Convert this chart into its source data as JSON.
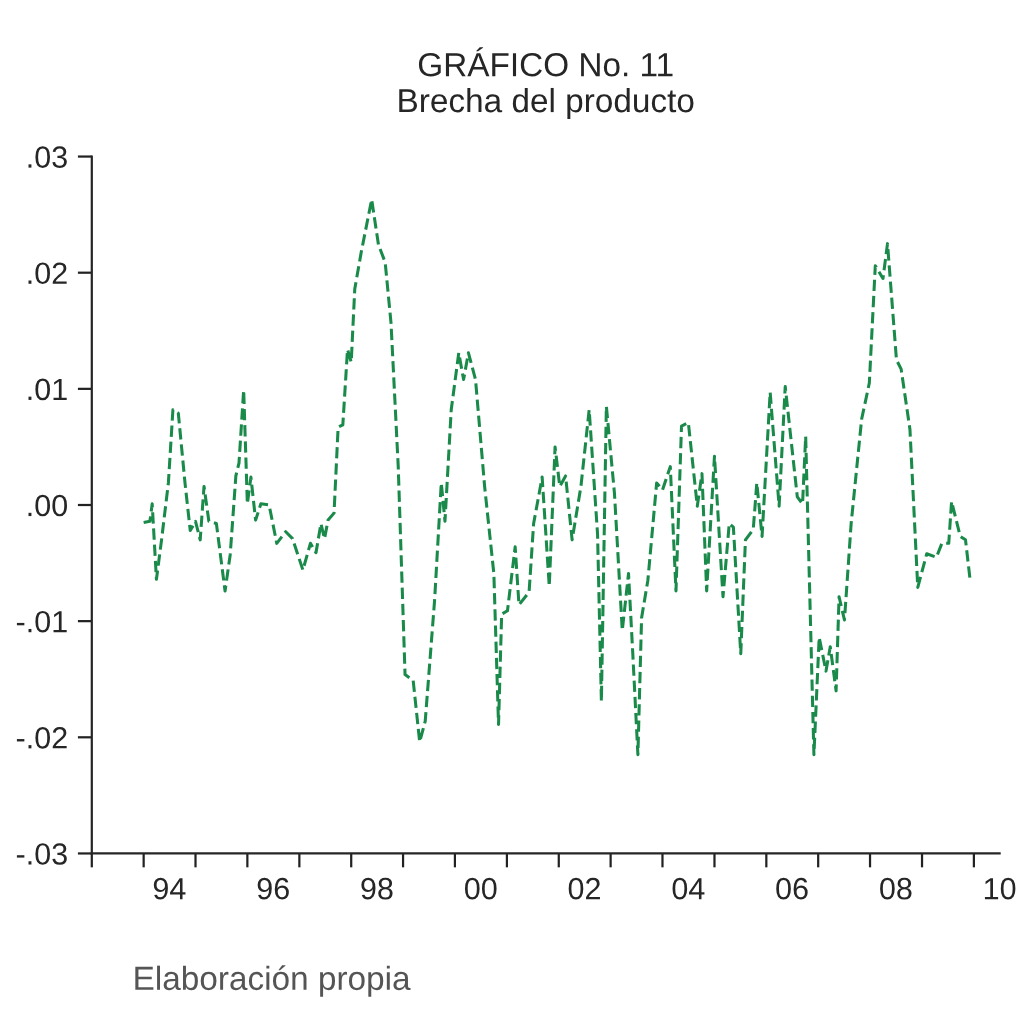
{
  "chart_data": {
    "type": "line",
    "title": "GRÁFICO No. 11\nBrecha del producto",
    "annotations": [
      "Elaboración propia"
    ],
    "x": [
      "1994-01-01",
      "1994-02-14",
      "1994-03-02",
      "1994-04-01",
      "1994-05-07",
      "1994-06-24",
      "1994-07-26",
      "1994-09-02",
      "1994-10-19",
      "1994-11-25",
      "1995-01-01",
      "1995-02-03",
      "1995-03-02",
      "1995-04-05",
      "1995-05-28",
      "1995-07-28",
      "1995-09-02",
      "1995-10-12",
      "1995-11-03",
      "1995-12-06",
      "1996-01-01",
      "1996-01-26",
      "1996-02-28",
      "1996-04-05",
      "1996-06-02",
      "1996-07-26",
      "1996-09-27",
      "1996-11-14",
      "1997-01-26",
      "1997-03-20",
      "1997-04-28",
      "1997-06-02",
      "1997-06-27",
      "1997-07-22",
      "1997-09-02",
      "1997-10-01",
      "1997-11-03",
      "1997-12-06",
      "1998-01-01",
      "1998-01-26",
      "1998-03-13",
      "1998-05-25",
      "1998-07-12",
      "1998-08-28",
      "1998-10-08",
      "1998-11-28",
      "1999-01-15",
      "1999-03-13",
      "1999-04-28",
      "1999-06-06",
      "1999-08-11",
      "1999-09-27",
      "1999-10-23",
      "1999-12-06",
      "2000-01-28",
      "2000-03-02",
      "2000-04-05",
      "2000-05-25",
      "2000-07-28",
      "2000-10-01",
      "2000-11-03",
      "2000-11-25",
      "2001-01-05",
      "2001-02-28",
      "2001-03-27",
      "2001-06-06",
      "2001-07-08",
      "2001-09-06",
      "2001-10-26",
      "2001-12-06",
      "2002-01-08",
      "2002-02-18",
      "2002-04-05",
      "2002-06-06",
      "2002-08-03",
      "2002-10-01",
      "2002-10-28",
      "2002-12-02",
      "2003-01-28",
      "2003-03-24",
      "2003-05-07",
      "2003-06-06",
      "2003-07-12",
      "2003-08-07",
      "2003-09-20",
      "2003-11-21",
      "2004-01-01",
      "2004-02-25",
      "2004-04-05",
      "2004-05-14",
      "2004-07-01",
      "2004-09-02",
      "2004-10-05",
      "2004-11-07",
      "2005-01-01",
      "2005-03-02",
      "2005-04-15",
      "2005-05-14",
      "2005-07-05",
      "2005-08-07",
      "2005-10-01",
      "2005-10-26",
      "2005-12-02",
      "2006-01-28",
      "2006-04-01",
      "2006-05-14",
      "2006-08-07",
      "2006-09-13",
      "2006-10-05",
      "2006-12-02",
      "2007-01-08",
      "2007-02-25",
      "2007-03-27",
      "2007-05-07",
      "2007-05-28",
      "2007-07-05",
      "2007-08-21",
      "2007-11-03",
      "2007-12-27",
      "2008-02-07",
      "2008-04-01",
      "2008-05-03",
      "2008-07-05",
      "2008-08-07",
      "2008-10-08",
      "2008-12-02",
      "2009-02-03",
      "2009-04-12",
      "2009-05-21",
      "2009-07-08",
      "2009-07-28",
      "2009-09-27",
      "2009-11-03",
      "2009-12-06"
    ],
    "series": [
      {
        "color": "#1a8a4a",
        "values": [
          -0.0015,
          -0.0014,
          0.0001,
          -0.0064,
          -0.003,
          0.0019,
          0.0082,
          0.0079,
          0.0019,
          -0.0022,
          -0.0014,
          -0.003,
          0.0016,
          -0.0014,
          -0.0016,
          -0.0074,
          -0.0043,
          0.0025,
          0.0036,
          0.0099,
          0.0001,
          0.0024,
          -0.0013,
          0.0001,
          0.0,
          -0.0033,
          -0.0023,
          -0.0029,
          -0.0056,
          -0.0033,
          -0.0041,
          -0.0016,
          -0.0029,
          -0.0013,
          -0.0007,
          0.0067,
          0.0069,
          0.0134,
          0.0123,
          0.0186,
          0.0218,
          0.0263,
          0.0224,
          0.0209,
          0.0157,
          0.0033,
          -0.0146,
          -0.0151,
          -0.0204,
          -0.0186,
          -0.0082,
          0.0019,
          -0.0014,
          0.0082,
          0.0131,
          0.0108,
          0.0131,
          0.0108,
          0.0016,
          -0.0059,
          -0.0189,
          -0.0094,
          -0.0091,
          -0.0036,
          -0.0086,
          -0.0075,
          -0.0016,
          0.0024,
          -0.007,
          0.005,
          0.0016,
          0.0025,
          -0.003,
          0.0016,
          0.0082,
          -0.0025,
          -0.0169,
          0.0085,
          0.001,
          -0.0108,
          -0.0059,
          -0.0128,
          -0.0215,
          -0.0097,
          -0.0065,
          0.0019,
          0.0013,
          0.0033,
          -0.0074,
          0.0068,
          0.0071,
          -0.0001,
          0.0027,
          -0.0074,
          0.0042,
          -0.0079,
          -0.0016,
          -0.0019,
          -0.0128,
          -0.003,
          -0.0021,
          0.0019,
          -0.0027,
          0.0097,
          -0.0001,
          0.0102,
          0.0007,
          0.0001,
          0.0059,
          -0.0215,
          -0.0114,
          -0.0143,
          -0.0122,
          -0.016,
          -0.0079,
          -0.0099,
          -0.0016,
          0.0074,
          0.0105,
          0.0206,
          0.0195,
          0.0225,
          0.0125,
          0.0117,
          0.0065,
          -0.0071,
          -0.0042,
          -0.0045,
          -0.0033,
          -0.0033,
          0.0003,
          -0.0027,
          -0.003,
          -0.0065
        ]
      }
    ],
    "xlim": [
      "1993-01-01",
      "2010-07-01"
    ],
    "xticks": [
      {
        "value": "1993-01-01",
        "label": null
      },
      {
        "value": "1994-01-01",
        "label": null
      },
      {
        "value": "1995-01-01",
        "label": null
      },
      {
        "value": "1996-01-01",
        "label": null
      },
      {
        "value": "1997-01-01",
        "label": null
      },
      {
        "value": "1998-01-01",
        "label": null
      },
      {
        "value": "1999-01-01",
        "label": null
      },
      {
        "value": "2000-01-01",
        "label": null
      },
      {
        "value": "2001-01-01",
        "label": null
      },
      {
        "value": "2002-01-01",
        "label": null
      },
      {
        "value": "2003-01-01",
        "label": null
      },
      {
        "value": "2004-01-01",
        "label": null
      },
      {
        "value": "2005-01-01",
        "label": null
      },
      {
        "value": "2006-01-01",
        "label": null
      },
      {
        "value": "2007-01-01",
        "label": null
      },
      {
        "value": "2008-01-01",
        "label": null
      },
      {
        "value": "2009-01-01",
        "label": null
      },
      {
        "value": "2010-01-01",
        "label": null
      },
      {
        "value": "1994-07-01",
        "label": "94"
      },
      {
        "value": "1996-07-01",
        "label": "96"
      },
      {
        "value": "1998-07-01",
        "label": "98"
      },
      {
        "value": "2000-07-01",
        "label": "00"
      },
      {
        "value": "2002-07-01",
        "label": "02"
      },
      {
        "value": "2004-07-01",
        "label": "04"
      },
      {
        "value": "2006-07-01",
        "label": "06"
      },
      {
        "value": "2008-07-01",
        "label": "08"
      },
      {
        "value": "2010-07-01",
        "label": "10"
      }
    ],
    "ylim": [
      -0.03,
      0.03
    ],
    "yticks": [
      {
        "value": -0.03,
        "label": "-.03"
      },
      {
        "value": -0.02,
        "label": "-.02"
      },
      {
        "value": -0.01,
        "label": "-.01"
      },
      {
        "value": 0.0,
        "label": ".00"
      },
      {
        "value": 0.01,
        "label": ".01"
      },
      {
        "value": 0.02,
        "label": ".02"
      },
      {
        "value": 0.03,
        "label": ".03"
      }
    ],
    "grid": false,
    "line_style": "dashed",
    "marker": "none"
  }
}
